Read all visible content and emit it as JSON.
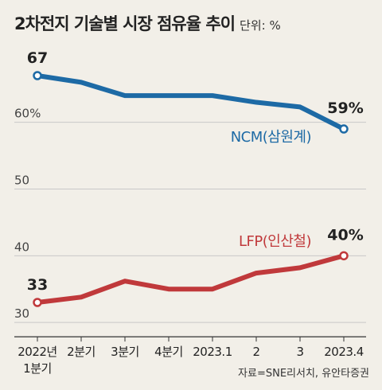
{
  "title": "2차전지 기술별 시장 점유율 추이",
  "unit": "단위: %",
  "source": "자료=SNE리서치, 유안타증권",
  "colors": {
    "ncm": "#1d6aa5",
    "lfp": "#c0393b",
    "grid": "#c8c8c8",
    "background": "#f2efe8"
  },
  "chart_data": {
    "type": "line",
    "categories": [
      "2022년 1분기",
      "2분기",
      "3분기",
      "4분기",
      "2023.1",
      "2",
      "3",
      "2023.4"
    ],
    "y_ticks": [
      "60%",
      "50",
      "40",
      "30"
    ],
    "ylim": [
      30,
      67
    ],
    "grid": true,
    "series": [
      {
        "name": "NCM(삼원계)",
        "values": [
          67,
          66,
          64,
          64,
          64,
          63,
          62.3,
          59
        ],
        "start_label": "67",
        "end_label": "59%"
      },
      {
        "name": "LFP(인산철)",
        "values": [
          33,
          33.8,
          36.2,
          35,
          35,
          37.4,
          38.2,
          40
        ],
        "start_label": "33",
        "end_label": "40%"
      }
    ]
  }
}
